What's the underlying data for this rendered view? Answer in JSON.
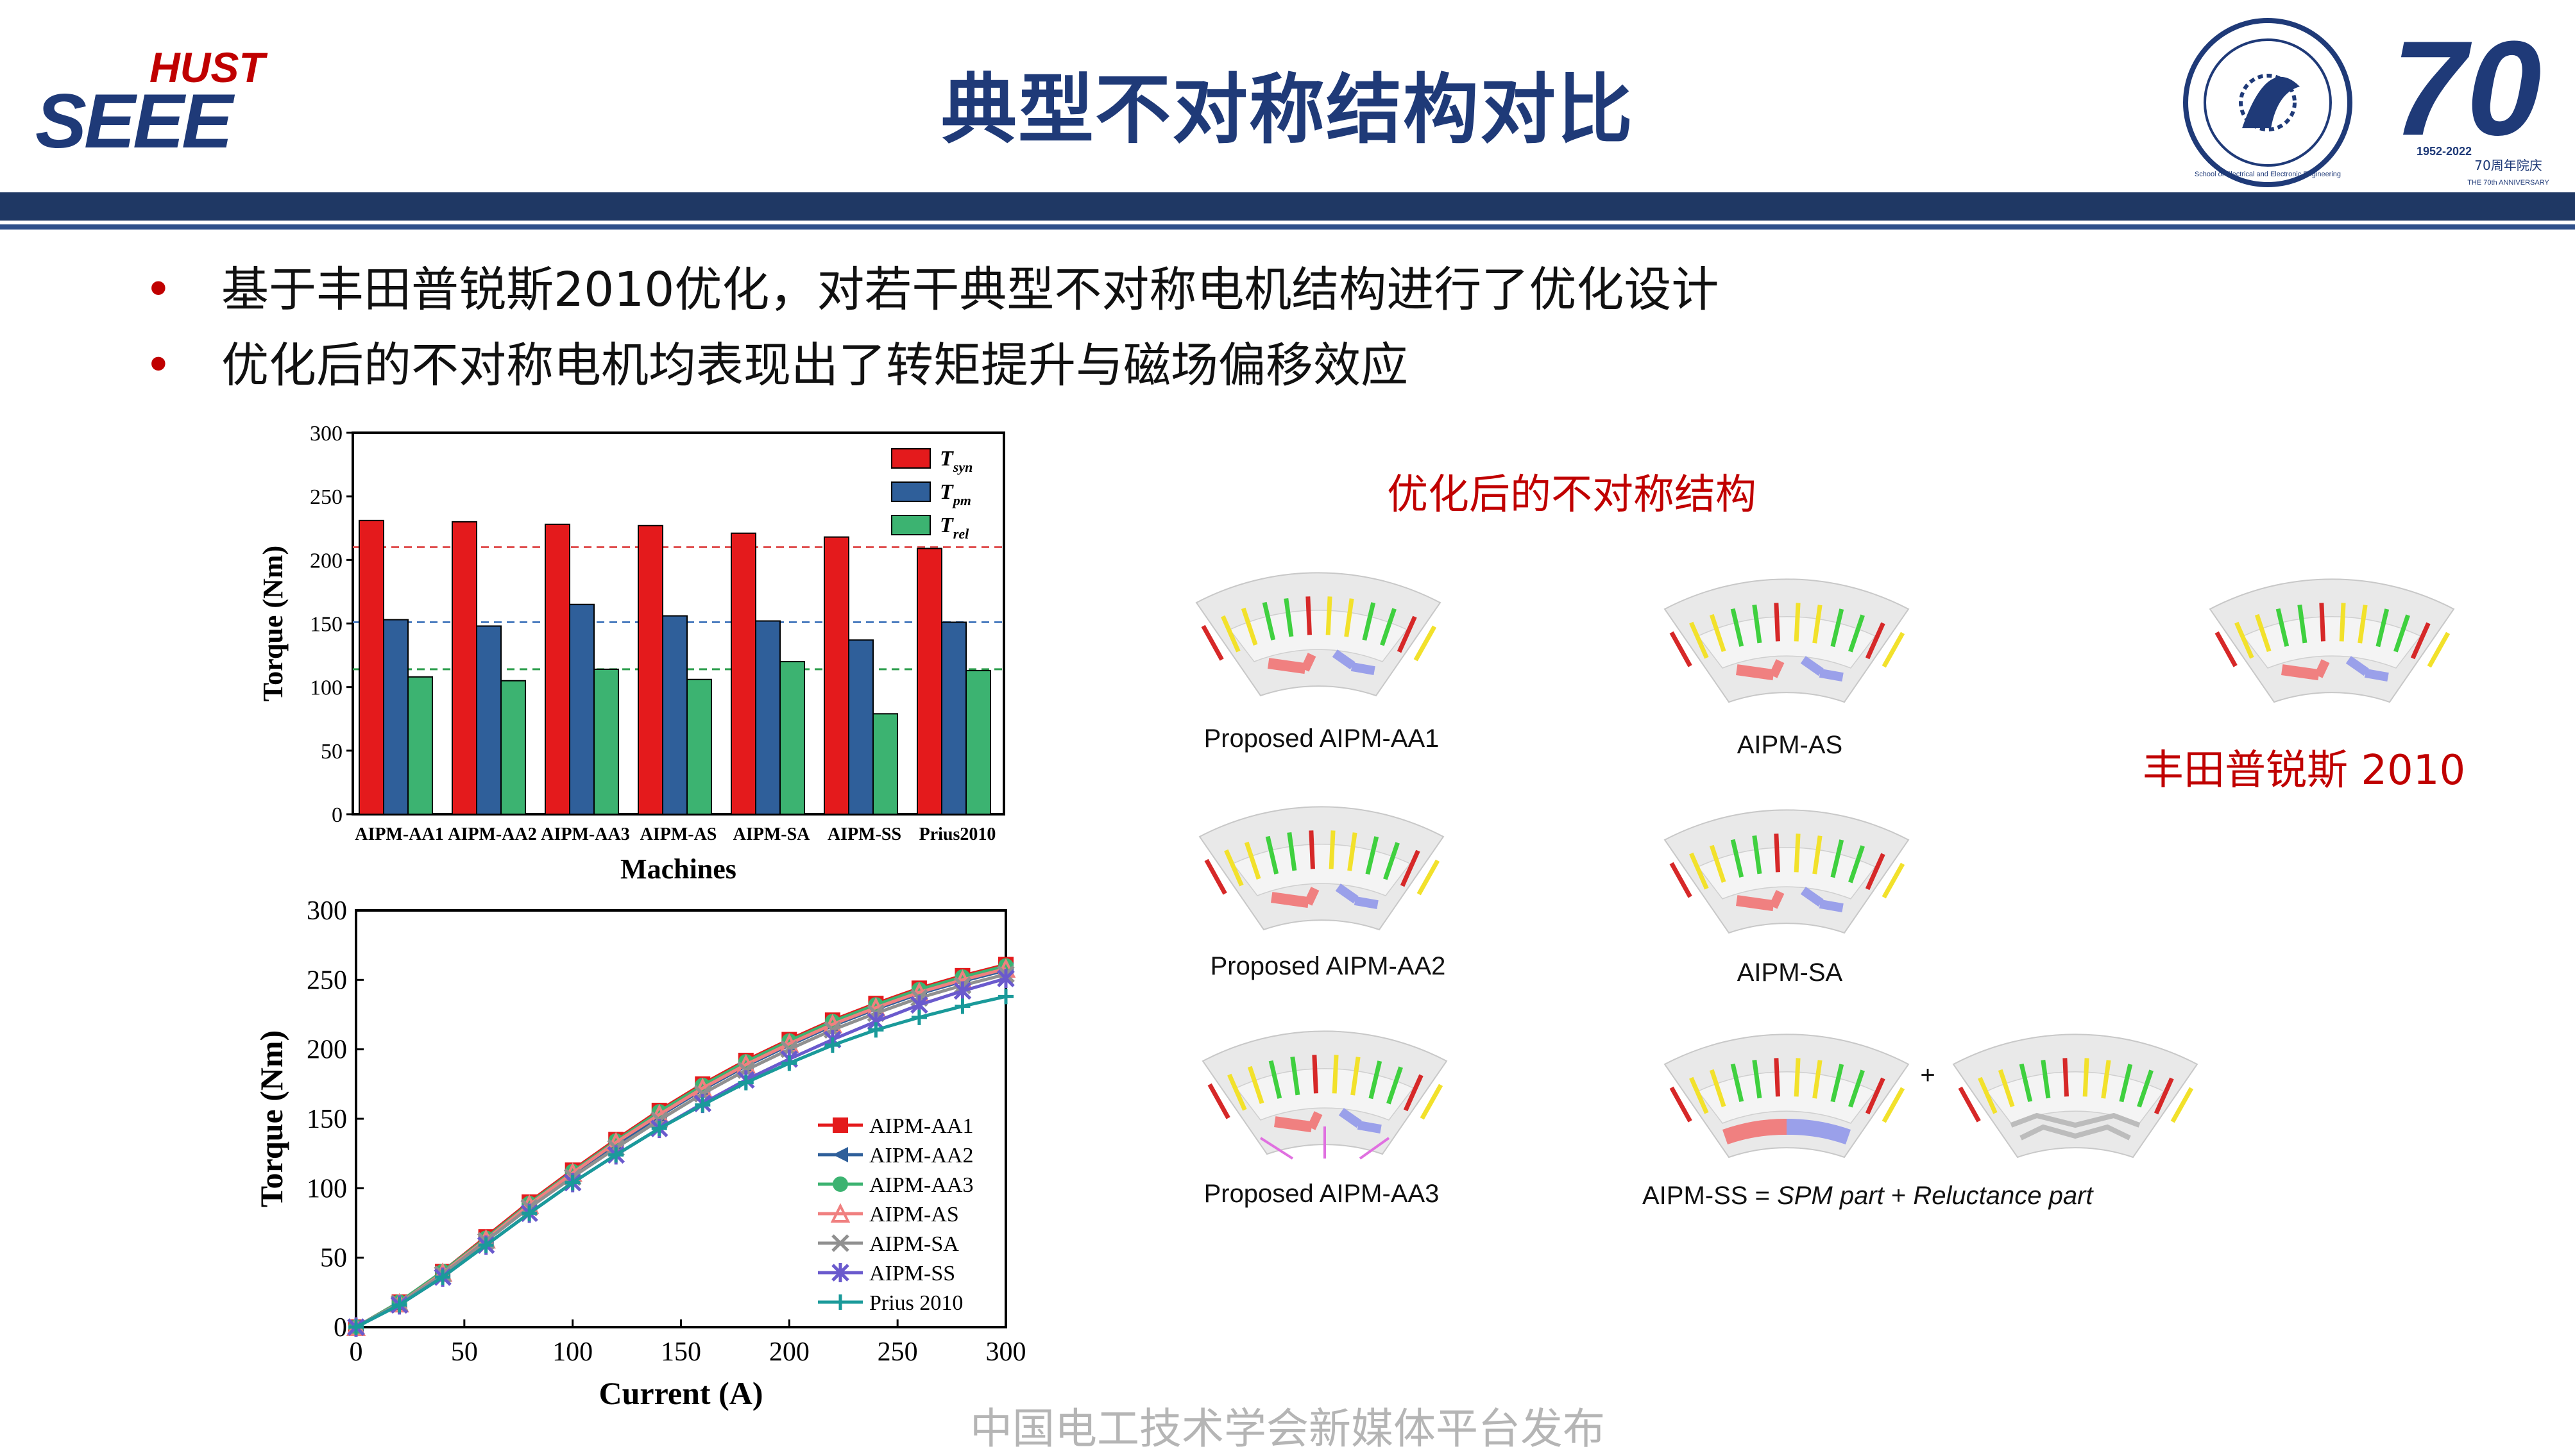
{
  "header": {
    "logo_text_top": "HUST",
    "logo_text_main": "SEEE",
    "title": "典型不对称结构对比",
    "seal_text": "School of Electrical and Electronic Engineering",
    "anniv_number": "70",
    "anniv_years": "1952-2022",
    "anniv_text": "70周年院庆",
    "anniv_sub": "THE 70th ANNIVERSARY"
  },
  "bullets": [
    "基于丰田普锐斯2010优化，对若干典型不对称电机结构进行了优化设计",
    "优化后的不对称电机均表现出了转矩提升与磁场偏移效应"
  ],
  "bullet_symbol": "•",
  "structures": {
    "heading": "优化后的不对称结构",
    "labels": {
      "aa1": "Proposed AIPM-AA1",
      "aa2": "Proposed AIPM-AA2",
      "aa3": "Proposed AIPM-AA3",
      "as": "AIPM-AS",
      "sa": "AIPM-SA",
      "ss_prefix": "AIPM-SS = ",
      "ss_spm": "SPM part",
      "ss_plus": " + ",
      "ss_rel": "Reluctance part",
      "prius": "丰田普锐斯 2010"
    },
    "plus_sign": "+"
  },
  "footer": "中国电工技术学会新媒体平台发布",
  "colors": {
    "title": "#1f3a78",
    "bar": "#1f3864",
    "accent_red": "#c00000",
    "series_syn": "#e41a1c",
    "series_pm": "#2f5f9a",
    "series_rel": "#3cb371"
  },
  "chart_data": [
    {
      "type": "bar",
      "categories": [
        "AIPM-AA1",
        "AIPM-AA2",
        "AIPM-AA3",
        "AIPM-AS",
        "AIPM-SA",
        "AIPM-SS",
        "Prius2010"
      ],
      "series": [
        {
          "name": "T_syn",
          "values": [
            231,
            230,
            228,
            227,
            221,
            218,
            209
          ],
          "color": "#e41a1c"
        },
        {
          "name": "T_pm",
          "values": [
            153,
            148,
            165,
            156,
            152,
            137,
            151
          ],
          "color": "#2f5f9a"
        },
        {
          "name": "T_rel",
          "values": [
            108,
            105,
            114,
            106,
            120,
            79,
            113
          ],
          "color": "#3cb371"
        }
      ],
      "legend_labels": [
        {
          "main": "T",
          "sub": "syn"
        },
        {
          "main": "T",
          "sub": "pm"
        },
        {
          "main": "T",
          "sub": "rel"
        }
      ],
      "reference_lines": [
        {
          "value": 210,
          "color": "#e05050"
        },
        {
          "value": 151,
          "color": "#4f7fc0"
        },
        {
          "value": 114,
          "color": "#2e9e4e"
        }
      ],
      "xlabel": "Machines",
      "ylabel": "Torque (Nm)",
      "ylim": [
        0,
        300
      ],
      "yticks": [
        0,
        50,
        100,
        150,
        200,
        250,
        300
      ],
      "legend_position": "top-right"
    },
    {
      "type": "line",
      "x": [
        0,
        20,
        40,
        60,
        80,
        100,
        120,
        140,
        160,
        180,
        200,
        220,
        240,
        260,
        280,
        300
      ],
      "series": [
        {
          "name": "AIPM-AA1",
          "marker": "square",
          "color": "#e41a1c",
          "values": [
            0,
            18,
            40,
            65,
            90,
            113,
            135,
            156,
            175,
            192,
            207,
            221,
            233,
            244,
            253,
            261
          ]
        },
        {
          "name": "AIPM-AA2",
          "marker": "triangle-left",
          "color": "#2f5f9a",
          "values": [
            0,
            17,
            39,
            63,
            87,
            110,
            131,
            152,
            171,
            188,
            203,
            217,
            229,
            240,
            249,
            257
          ]
        },
        {
          "name": "AIPM-AA3",
          "marker": "circle",
          "color": "#3cb371",
          "values": [
            0,
            18,
            40,
            64,
            89,
            112,
            134,
            155,
            174,
            191,
            206,
            220,
            232,
            243,
            252,
            260
          ]
        },
        {
          "name": "AIPM-AS",
          "marker": "triangle-open",
          "color": "#f08080",
          "values": [
            0,
            17,
            39,
            63,
            88,
            111,
            133,
            153,
            172,
            189,
            204,
            218,
            230,
            241,
            250,
            258
          ]
        },
        {
          "name": "AIPM-SA",
          "marker": "x",
          "color": "#909090",
          "values": [
            0,
            17,
            38,
            62,
            86,
            108,
            129,
            149,
            168,
            185,
            200,
            214,
            226,
            237,
            246,
            254
          ]
        },
        {
          "name": "AIPM-SS",
          "marker": "star",
          "color": "#6a5acd",
          "values": [
            0,
            16,
            36,
            59,
            82,
            104,
            124,
            143,
            161,
            178,
            193,
            207,
            220,
            232,
            242,
            251
          ]
        },
        {
          "name": "Prius 2010",
          "marker": "plus",
          "color": "#1a9a9a",
          "values": [
            0,
            16,
            36,
            59,
            82,
            104,
            124,
            143,
            160,
            176,
            190,
            203,
            214,
            223,
            231,
            238
          ]
        }
      ],
      "xlabel": "Current (A)",
      "ylabel": "Torque (Nm)",
      "xlim": [
        0,
        300
      ],
      "ylim": [
        0,
        300
      ],
      "xticks": [
        0,
        50,
        100,
        150,
        200,
        250,
        300
      ],
      "yticks": [
        0,
        50,
        100,
        150,
        200,
        250,
        300
      ],
      "legend_position": "bottom-right"
    }
  ]
}
